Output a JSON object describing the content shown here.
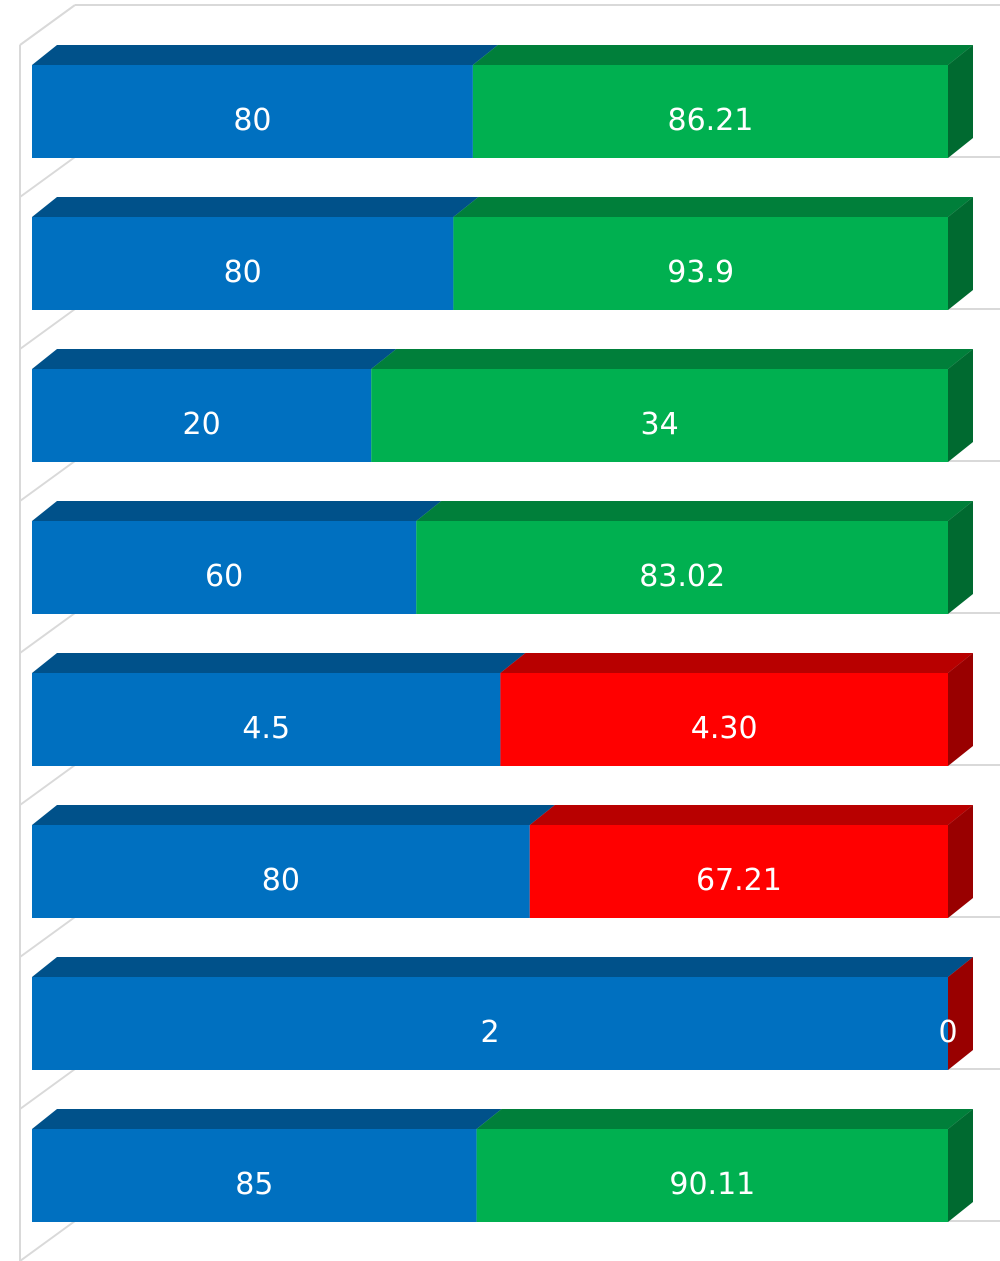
{
  "chart_data": {
    "type": "bar",
    "orientation": "horizontal",
    "stacking": "percent",
    "categories": [
      null,
      null,
      null,
      null,
      null,
      null,
      null,
      null
    ],
    "series": [
      {
        "color": "#0070c0",
        "values": [
          80,
          80,
          20,
          60,
          4.5,
          80,
          2,
          85
        ]
      },
      {
        "colors": [
          "#00b050",
          "#00b050",
          "#00b050",
          "#00b050",
          "#ff0000",
          "#ff0000",
          "#ff0000",
          "#00b050"
        ],
        "values": [
          86.21,
          93.9,
          34,
          83.02,
          4.3,
          67.21,
          0,
          90.11
        ],
        "value_labels": [
          "86.21",
          "93.9",
          "34",
          "83.02",
          "4.30",
          "67.21",
          "0",
          "90.11"
        ]
      }
    ]
  }
}
